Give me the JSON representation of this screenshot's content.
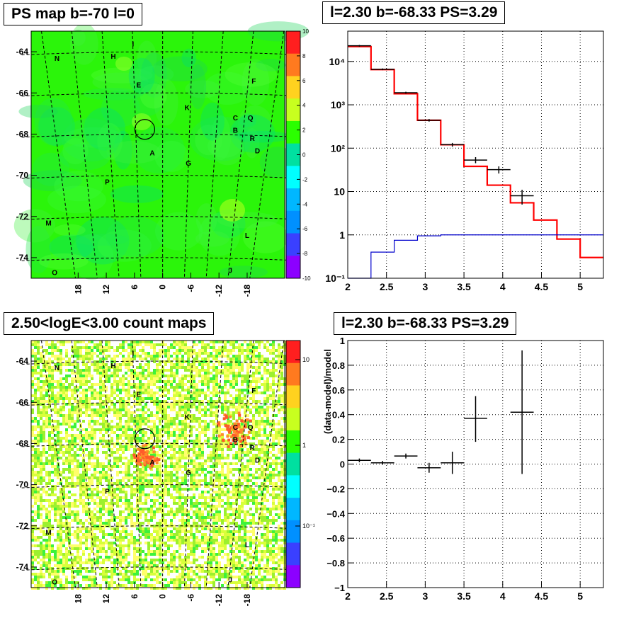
{
  "panels": {
    "ps_map": {
      "title": "PS map b=-70 l=0",
      "ylabels": [
        "-64",
        "-66",
        "-68",
        "-70",
        "-72",
        "-74"
      ],
      "xlabels": [
        "18",
        "12",
        "6",
        "0",
        "-6",
        "-12",
        "-18"
      ],
      "colorbar": {
        "ticks": [
          "10",
          "8",
          "6",
          "4",
          "2",
          "0",
          "-2",
          "-4",
          "-6",
          "-8",
          "-10"
        ],
        "colors": [
          "#ff1f1f",
          "#ff7a1f",
          "#ffd21f",
          "#c8ff1f",
          "#2bff00",
          "#00e0a0",
          "#00ffff",
          "#00b7ff",
          "#0090ff",
          "#3a40ff",
          "#8c00ff"
        ]
      },
      "sources": [
        {
          "name": "I",
          "lon": 6.3,
          "lat": -63.6
        },
        {
          "name": "N",
          "lon": 22.5,
          "lat": -64.3
        },
        {
          "name": "H",
          "lon": 10.5,
          "lat": -64.2
        },
        {
          "name": "E",
          "lon": 5.1,
          "lat": -65.6
        },
        {
          "name": "F",
          "lon": -19.4,
          "lat": -65.4
        },
        {
          "name": "K",
          "lon": -5.2,
          "lat": -66.7
        },
        {
          "name": "C",
          "lon": -15.5,
          "lat": -67.2
        },
        {
          "name": "Q",
          "lon": -18.7,
          "lat": -67.2
        },
        {
          "name": "B",
          "lon": -15.5,
          "lat": -67.8
        },
        {
          "name": "R",
          "lon": -19.1,
          "lat": -68.2
        },
        {
          "name": "D",
          "lon": -20.2,
          "lat": -68.8
        },
        {
          "name": "A",
          "lon": 2.2,
          "lat": -68.9
        },
        {
          "name": "G",
          "lon": -5.5,
          "lat": -69.4
        },
        {
          "name": "P",
          "lon": 11.8,
          "lat": -70.3
        },
        {
          "name": "M",
          "lon": 24.3,
          "lat": -72.3
        },
        {
          "name": "L",
          "lon": -18.0,
          "lat": -72.9
        },
        {
          "name": "O",
          "lon": 23.0,
          "lat": -74.7
        },
        {
          "name": "J",
          "lon": -14.4,
          "lat": -74.6
        }
      ]
    },
    "count_map": {
      "title": "2.50<logE<3.00 count maps",
      "ylabels": [
        "-64",
        "-66",
        "-68",
        "-70",
        "-72",
        "-74"
      ],
      "xlabels": [
        "18",
        "12",
        "6",
        "0",
        "-6",
        "-12",
        "-18"
      ],
      "colorbar": {
        "ticks": [
          "10",
          "1",
          "10⁻¹"
        ],
        "colors": [
          "#ff1f1f",
          "#ff7a1f",
          "#ffd21f",
          "#c8ff1f",
          "#2bff00",
          "#00e0a0",
          "#00ffff",
          "#00b7ff",
          "#0090ff",
          "#3a40ff",
          "#8c00ff"
        ]
      }
    },
    "spectrum": {
      "title": "l=2.30 b=-68.33 PS=3.29"
    },
    "residual": {
      "title": "l=2.30 b=-68.33 PS=3.29"
    }
  },
  "chart_data": [
    {
      "type": "heatmap",
      "title": "PS map b=-70 l=0",
      "xlim": [
        28,
        -26
      ],
      "ylim": [
        -75,
        -63
      ],
      "color_range": [
        -10,
        10
      ],
      "xticks": [
        18,
        12,
        6,
        0,
        -6,
        -12,
        -18
      ],
      "yticks": [
        -64,
        -66,
        -68,
        -70,
        -72,
        -74
      ],
      "grid": true,
      "circle": {
        "lon": 3.5,
        "lat": -67.6
      }
    },
    {
      "type": "heatmap",
      "title": "2.50<logE<3.00 count maps",
      "xlim": [
        28,
        -26
      ],
      "ylim": [
        -75,
        -63
      ],
      "color_scale": "log",
      "color_range": [
        0.03,
        30
      ],
      "xticks": [
        18,
        12,
        6,
        0,
        -6,
        -12,
        -18
      ],
      "yticks": [
        -64,
        -66,
        -68,
        -70,
        -72,
        -74
      ],
      "grid": true,
      "circle": {
        "lon": 3.5,
        "lat": -67.6
      }
    },
    {
      "type": "line",
      "title": "l=2.30 b=-68.33 PS=3.29",
      "xlim": [
        2,
        5.3
      ],
      "ylim": [
        0.1,
        50000
      ],
      "yscale": "log",
      "xticks": [
        "2",
        "2.5",
        "3",
        "3.5",
        "4",
        "4.5",
        "5"
      ],
      "yticks": [
        "10⁻¹",
        "1",
        "10",
        "10²",
        "10³",
        "10⁴"
      ],
      "grid": true,
      "series": [
        {
          "color": "#ff0000",
          "edges": [
            2.0,
            2.3,
            2.6,
            2.9,
            3.2,
            3.5,
            3.8,
            4.1,
            4.4,
            4.7,
            5.0,
            5.3
          ],
          "values": [
            22000,
            6500,
            1800,
            440,
            120,
            38,
            14,
            5.5,
            2.2,
            0.8,
            0.3
          ]
        },
        {
          "color": "#0000cc",
          "edges": [
            2.0,
            2.3,
            2.6,
            2.9,
            3.2,
            3.5,
            3.8,
            4.1,
            4.4,
            4.7,
            5.0,
            5.3
          ],
          "values": [
            0.1,
            0.4,
            0.75,
            0.95,
            1.0,
            1.0,
            1.0,
            1.0,
            1.0,
            1.0,
            1.0
          ]
        },
        {
          "color": "#000000",
          "type": "errorbar",
          "points": [
            {
              "x": 2.15,
              "xerr": 0.15,
              "y": 23000,
              "lo": 22000,
              "hi": 24000
            },
            {
              "x": 2.45,
              "xerr": 0.15,
              "y": 6600,
              "lo": 6300,
              "hi": 6900
            },
            {
              "x": 2.75,
              "xerr": 0.15,
              "y": 1900,
              "lo": 1800,
              "hi": 2000
            },
            {
              "x": 3.05,
              "xerr": 0.15,
              "y": 440,
              "lo": 410,
              "hi": 470
            },
            {
              "x": 3.35,
              "xerr": 0.15,
              "y": 120,
              "lo": 108,
              "hi": 132
            },
            {
              "x": 3.65,
              "xerr": 0.15,
              "y": 53,
              "lo": 45,
              "hi": 62
            },
            {
              "x": 3.95,
              "xerr": 0.15,
              "y": 32,
              "lo": 26,
              "hi": 38
            },
            {
              "x": 4.25,
              "xerr": 0.15,
              "y": 8,
              "lo": 5,
              "hi": 11
            }
          ]
        }
      ]
    },
    {
      "type": "scatter",
      "title": "l=2.30 b=-68.33 PS=3.29",
      "ylabel": "(data-model)/model",
      "xlim": [
        2,
        5.3
      ],
      "ylim": [
        -1,
        1
      ],
      "xticks": [
        "2",
        "2.5",
        "3",
        "3.5",
        "4",
        "4.5",
        "5"
      ],
      "yticks": [
        "1",
        "0.8",
        "0.6",
        "0.4",
        "0.2",
        "0",
        "−0.2",
        "−0.4",
        "−0.6",
        "−0.8",
        "−1"
      ],
      "grid": true,
      "points": [
        {
          "x": 2.15,
          "xerr": 0.15,
          "y": 0.03,
          "lo": 0.015,
          "hi": 0.045
        },
        {
          "x": 2.45,
          "xerr": 0.15,
          "y": 0.01,
          "lo": -0.005,
          "hi": 0.025
        },
        {
          "x": 2.75,
          "xerr": 0.15,
          "y": 0.065,
          "lo": 0.045,
          "hi": 0.085
        },
        {
          "x": 3.05,
          "xerr": 0.15,
          "y": -0.03,
          "lo": -0.07,
          "hi": 0.01
        },
        {
          "x": 3.35,
          "xerr": 0.15,
          "y": 0.01,
          "lo": -0.08,
          "hi": 0.1
        },
        {
          "x": 3.65,
          "xerr": 0.15,
          "y": 0.37,
          "lo": 0.18,
          "hi": 0.55
        },
        {
          "x": 4.25,
          "xerr": 0.15,
          "y": 0.42,
          "lo": -0.08,
          "hi": 0.92
        }
      ]
    }
  ]
}
